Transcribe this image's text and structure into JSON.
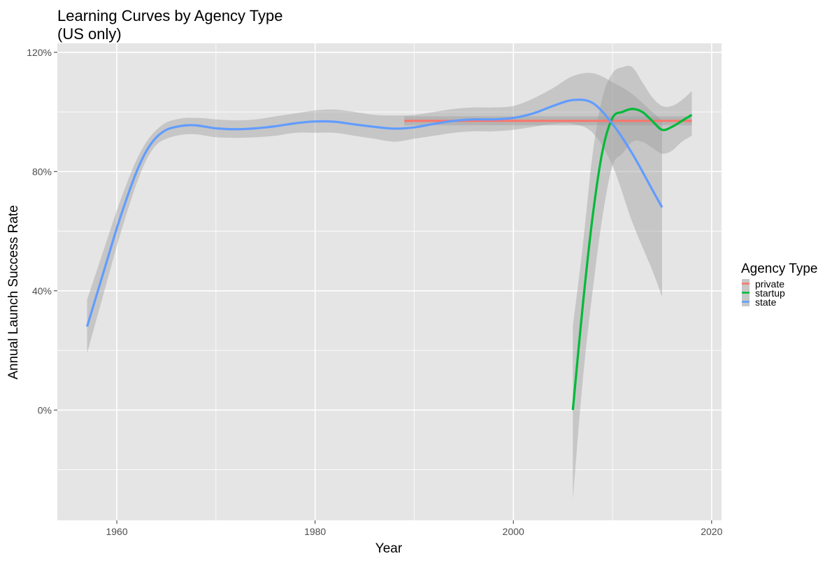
{
  "chart_data": {
    "type": "line",
    "title": [
      "Learning Curves by Agency Type",
      "(US only)"
    ],
    "xlabel": "Year",
    "ylabel": "Annual Launch Success Rate",
    "xlim": [
      1954,
      2021
    ],
    "ylim": [
      -0.37,
      1.23
    ],
    "x_ticks": [
      1960,
      1980,
      2000,
      2020
    ],
    "x_tick_labels": [
      "1960",
      "1980",
      "2000",
      "2020"
    ],
    "y_ticks": [
      0,
      0.4,
      0.8,
      1.2
    ],
    "y_tick_labels": [
      "0%",
      "40%",
      "80%",
      "120%"
    ],
    "grid": true,
    "panel_background": "#e5e5e5",
    "grid_color": "#ffffff",
    "band_color": "#999999",
    "legend": {
      "title": "Agency Type",
      "position": "right",
      "entries": [
        {
          "label": "private",
          "color": "#F8766D"
        },
        {
          "label": "startup",
          "color": "#00BA38"
        },
        {
          "label": "state",
          "color": "#619CFF"
        }
      ]
    },
    "series": [
      {
        "name": "private",
        "color": "#F8766D",
        "x": [
          1989,
          2018
        ],
        "y": [
          0.97,
          0.97
        ],
        "ci_lower": [
          0.955,
          0.955
        ],
        "ci_upper": [
          0.985,
          0.985
        ]
      },
      {
        "name": "startup",
        "color": "#00BA38",
        "x": [
          2006,
          2007,
          2008,
          2009,
          2010,
          2011,
          2012,
          2013,
          2014,
          2015,
          2016,
          2017,
          2018
        ],
        "y": [
          0.0,
          0.35,
          0.65,
          0.87,
          0.98,
          1.0,
          1.01,
          1.0,
          0.97,
          0.94,
          0.95,
          0.97,
          0.99
        ],
        "ci_lower": [
          -0.3,
          0.1,
          0.4,
          0.65,
          0.82,
          0.86,
          0.9,
          0.9,
          0.88,
          0.86,
          0.87,
          0.9,
          0.92
        ],
        "ci_upper": [
          0.28,
          0.55,
          0.86,
          1.05,
          1.13,
          1.15,
          1.15,
          1.1,
          1.05,
          1.02,
          1.02,
          1.04,
          1.07
        ]
      },
      {
        "name": "state",
        "color": "#619CFF",
        "x": [
          1957,
          1958,
          1959,
          1960,
          1961,
          1962,
          1963,
          1964,
          1965,
          1966,
          1967,
          1968,
          1969,
          1970,
          1972,
          1974,
          1976,
          1978,
          1980,
          1982,
          1984,
          1986,
          1988,
          1990,
          1992,
          1994,
          1996,
          1998,
          2000,
          2002,
          2004,
          2006,
          2008,
          2010,
          2012,
          2014,
          2015
        ],
        "y": [
          0.28,
          0.39,
          0.5,
          0.61,
          0.71,
          0.8,
          0.87,
          0.915,
          0.94,
          0.95,
          0.955,
          0.955,
          0.95,
          0.945,
          0.942,
          0.945,
          0.952,
          0.962,
          0.968,
          0.967,
          0.958,
          0.95,
          0.944,
          0.948,
          0.96,
          0.97,
          0.975,
          0.975,
          0.98,
          0.995,
          1.02,
          1.04,
          1.03,
          0.96,
          0.86,
          0.74,
          0.68
        ],
        "ci_lower": [
          0.19,
          0.31,
          0.43,
          0.55,
          0.66,
          0.76,
          0.84,
          0.89,
          0.91,
          0.92,
          0.925,
          0.925,
          0.92,
          0.915,
          0.913,
          0.915,
          0.92,
          0.93,
          0.93,
          0.93,
          0.92,
          0.91,
          0.9,
          0.91,
          0.92,
          0.93,
          0.935,
          0.935,
          0.94,
          0.95,
          0.96,
          0.96,
          0.93,
          0.82,
          0.63,
          0.47,
          0.38
        ],
        "ci_upper": [
          0.37,
          0.47,
          0.57,
          0.67,
          0.76,
          0.84,
          0.9,
          0.94,
          0.965,
          0.975,
          0.98,
          0.98,
          0.978,
          0.975,
          0.972,
          0.975,
          0.985,
          0.995,
          1.005,
          1.008,
          1.0,
          0.99,
          0.988,
          0.99,
          1.0,
          1.01,
          1.015,
          1.015,
          1.02,
          1.045,
          1.08,
          1.12,
          1.13,
          1.1,
          1.06,
          1.0,
          0.97
        ]
      }
    ]
  }
}
